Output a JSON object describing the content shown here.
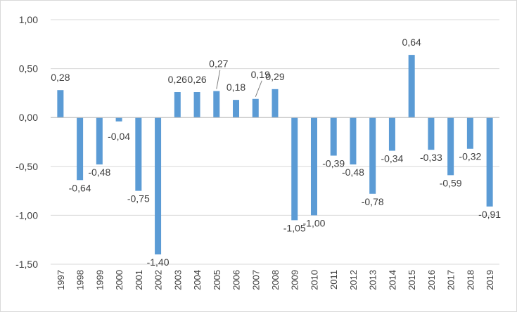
{
  "chart_data": {
    "type": "bar",
    "title": "",
    "xlabel": "",
    "ylabel": "",
    "categories": [
      "1997",
      "1998",
      "1999",
      "2000",
      "2001",
      "2002",
      "2003",
      "2004",
      "2005",
      "2006",
      "2007",
      "2008",
      "2009",
      "2010",
      "2011",
      "2012",
      "2013",
      "2014",
      "2015",
      "2016",
      "2017",
      "2018",
      "2019"
    ],
    "values": [
      0.28,
      -0.64,
      -0.48,
      -0.04,
      -0.75,
      -1.4,
      0.26,
      0.26,
      0.27,
      0.18,
      0.19,
      0.29,
      -1.05,
      -1.0,
      -0.39,
      -0.48,
      -0.78,
      -0.34,
      0.64,
      -0.33,
      -0.59,
      -0.32,
      -0.91
    ],
    "data_labels": [
      "0,28",
      "-0,64",
      "-0,48",
      "-0,04",
      "-0,75",
      "-1,40",
      "0,26",
      "0,26",
      "0,27",
      "0,18",
      "0,19",
      "0,29",
      "-1,05",
      "-1,00",
      "-0,39",
      "-0,48",
      "-0,78",
      "-0,34",
      "0,64",
      "-0,33",
      "-0,59",
      "-0,32",
      "-0,91"
    ],
    "ylim": [
      -1.5,
      1.0
    ],
    "yticks": [
      1.0,
      0.5,
      0.0,
      -0.5,
      -1.0,
      -1.5
    ],
    "ytick_labels": [
      "1,00",
      "0,50",
      "0,00",
      "-0,50",
      "-1,00",
      "-1,50"
    ],
    "grid": true,
    "legend": "none",
    "colors": {
      "bar": "#5b9bd5",
      "grid": "#d9d9d9",
      "axis": "#bfbfbf",
      "text": "#404040"
    }
  }
}
